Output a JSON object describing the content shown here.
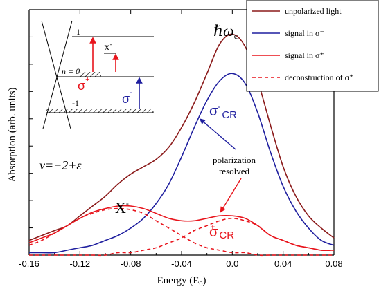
{
  "chart_data": {
    "type": "line",
    "xlabel": "Energy (E₀)",
    "ylabel": "Absorption (arb. units)",
    "xlim": [
      -0.16,
      0.08
    ],
    "ylim": [
      0,
      1.0
    ],
    "xticks": [
      "-0.16",
      "-0.12",
      "-0.08",
      "-0.04",
      "0.0",
      "0.04",
      "0.08"
    ],
    "xtick_values": [
      -0.16,
      -0.12,
      -0.08,
      -0.04,
      0.0,
      0.04,
      0.08
    ],
    "legend_position": "top-right",
    "series": [
      {
        "name": "unpolarized light",
        "color": "#8b1a1a",
        "style": "solid",
        "x": [
          -0.16,
          -0.15,
          -0.14,
          -0.13,
          -0.12,
          -0.11,
          -0.1,
          -0.09,
          -0.08,
          -0.07,
          -0.06,
          -0.05,
          -0.04,
          -0.03,
          -0.02,
          -0.01,
          0.0,
          0.01,
          0.02,
          0.03,
          0.04,
          0.05,
          0.06,
          0.07,
          0.08
        ],
        "y": [
          0.06,
          0.08,
          0.1,
          0.12,
          0.16,
          0.2,
          0.24,
          0.29,
          0.33,
          0.36,
          0.39,
          0.44,
          0.52,
          0.62,
          0.74,
          0.86,
          0.9,
          0.85,
          0.71,
          0.53,
          0.36,
          0.24,
          0.16,
          0.11,
          0.07
        ]
      },
      {
        "name": "signal in σ⁻",
        "color": "#1f1f9f",
        "style": "solid",
        "x": [
          -0.16,
          -0.15,
          -0.14,
          -0.13,
          -0.12,
          -0.11,
          -0.1,
          -0.09,
          -0.08,
          -0.07,
          -0.06,
          -0.05,
          -0.04,
          -0.03,
          -0.02,
          -0.01,
          0.0,
          0.01,
          0.02,
          0.03,
          0.04,
          0.05,
          0.06,
          0.07,
          0.08
        ],
        "y": [
          0.01,
          0.01,
          0.01,
          0.02,
          0.03,
          0.04,
          0.06,
          0.08,
          0.11,
          0.15,
          0.21,
          0.29,
          0.4,
          0.52,
          0.63,
          0.71,
          0.74,
          0.7,
          0.58,
          0.42,
          0.28,
          0.18,
          0.11,
          0.06,
          0.04
        ]
      },
      {
        "name": "signal in σ⁺",
        "color": "#e8141c",
        "style": "solid",
        "x": [
          -0.16,
          -0.15,
          -0.14,
          -0.13,
          -0.12,
          -0.11,
          -0.1,
          -0.09,
          -0.08,
          -0.07,
          -0.06,
          -0.05,
          -0.04,
          -0.03,
          -0.02,
          -0.01,
          0.0,
          0.01,
          0.02,
          0.03,
          0.04,
          0.05,
          0.06,
          0.07,
          0.08
        ],
        "y": [
          0.05,
          0.07,
          0.09,
          0.12,
          0.15,
          0.175,
          0.19,
          0.2,
          0.2,
          0.19,
          0.17,
          0.15,
          0.14,
          0.14,
          0.15,
          0.16,
          0.16,
          0.15,
          0.12,
          0.08,
          0.06,
          0.04,
          0.03,
          0.02,
          0.02
        ]
      },
      {
        "name": "deconstruction of σ⁺",
        "color": "#e8141c",
        "style": "dashed",
        "x": [
          -0.16,
          -0.15,
          -0.14,
          -0.13,
          -0.12,
          -0.11,
          -0.1,
          -0.09,
          -0.08,
          -0.07,
          -0.06,
          -0.05,
          -0.04,
          -0.03,
          -0.02,
          -0.01,
          0.0,
          0.01,
          0.02,
          0.03,
          0.04,
          0.05,
          0.06,
          0.07,
          0.08
        ],
        "y": [
          0.04,
          0.06,
          0.09,
          0.12,
          0.15,
          0.17,
          0.185,
          0.19,
          0.185,
          0.17,
          0.14,
          0.11,
          0.08,
          0.05,
          0.03,
          0.02,
          0.01,
          0.01,
          0.0,
          0.0,
          0.0,
          0.0,
          0.0,
          0.0,
          0.0
        ]
      },
      {
        "name": "",
        "color": "#e8141c",
        "style": "dashed",
        "x": [
          -0.16,
          -0.15,
          -0.14,
          -0.13,
          -0.12,
          -0.11,
          -0.1,
          -0.09,
          -0.08,
          -0.07,
          -0.06,
          -0.05,
          -0.04,
          -0.03,
          -0.02,
          -0.01,
          0.0,
          0.01,
          0.02,
          0.03,
          0.04,
          0.05,
          0.06,
          0.07,
          0.08
        ],
        "y": [
          0.0,
          0.0,
          0.0,
          0.0,
          0.0,
          0.0,
          0.0,
          0.01,
          0.01,
          0.02,
          0.03,
          0.05,
          0.07,
          0.1,
          0.12,
          0.14,
          0.15,
          0.14,
          0.12,
          0.08,
          0.06,
          0.04,
          0.03,
          0.02,
          0.02
        ]
      }
    ],
    "annotations": {
      "peak_label": "ℏω",
      "peak_sub": "c",
      "x_minus": "X",
      "x_minus_sup": "-",
      "sigma_minus_cr": "σ",
      "sigma_minus_cr_sup": "-",
      "sigma_minus_cr_sub": "CR",
      "sigma_plus_cr": "σ",
      "sigma_plus_cr_sup": "+",
      "sigma_plus_cr_sub": "CR",
      "nu_label": "ν=−2+ε",
      "polarization_line1": "polarization",
      "polarization_line2": "resolved"
    },
    "inset": {
      "level_top": "1",
      "level_mid": "n = 0",
      "level_bot": "-1",
      "x_minus": "X",
      "x_minus_sup": "-",
      "sigma_plus": "σ",
      "sigma_plus_sup": "+",
      "sigma_minus": "σ",
      "sigma_minus_sup": "-"
    }
  },
  "colors": {
    "unpolarized": "#8b1a1a",
    "sigma_minus": "#1f1f9f",
    "sigma_plus": "#e8141c"
  }
}
